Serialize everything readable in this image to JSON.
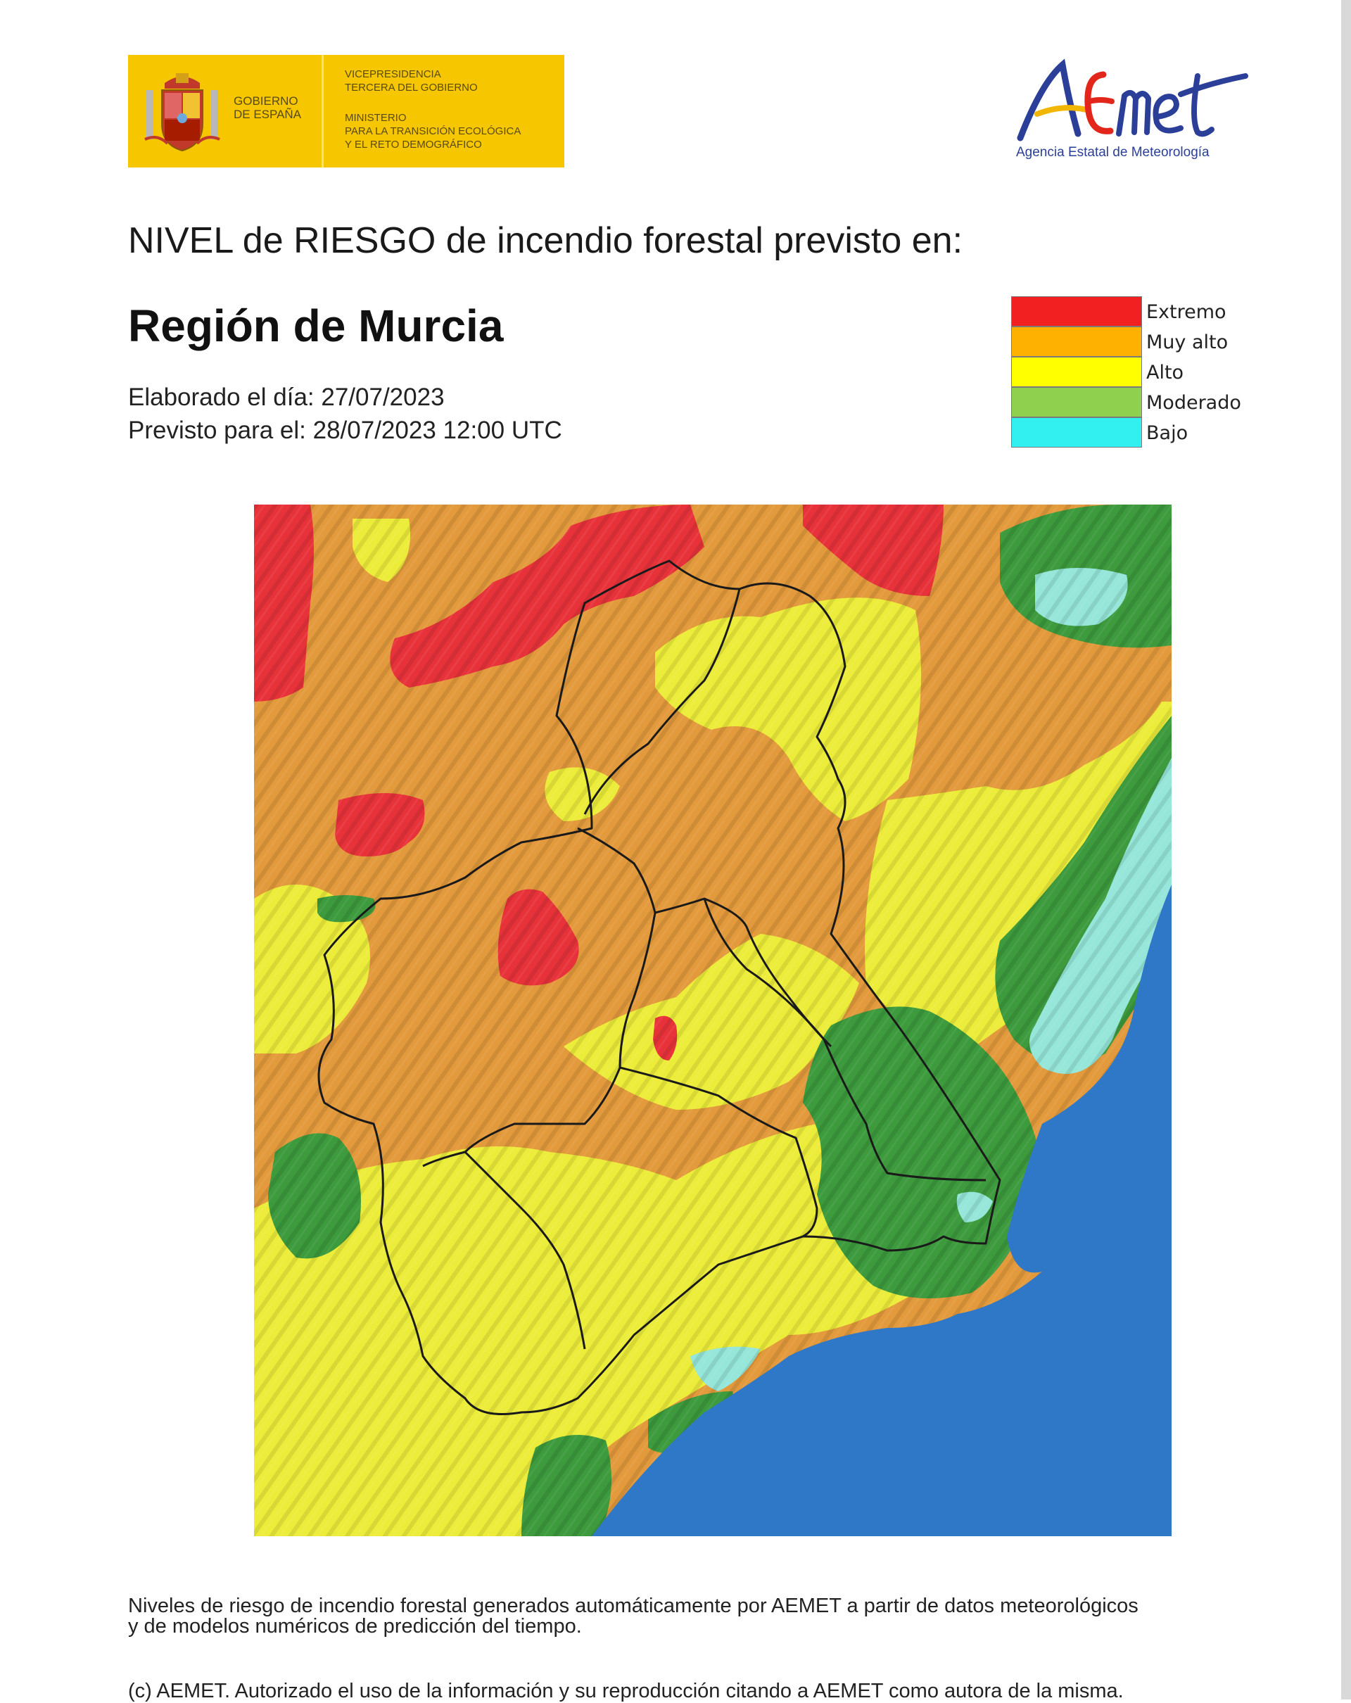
{
  "gov_logo": {
    "name": [
      "GOBIERNO",
      "DE ESPAÑA"
    ],
    "vice": [
      "VICEPRESIDENCIA",
      "TERCERA DEL GOBIERNO"
    ],
    "ministry": [
      "MINISTERIO",
      "PARA LA TRANSICIÓN ECOLÓGICA",
      "Y EL RETO DEMOGRÁFICO"
    ],
    "color": "#f6c700"
  },
  "aemet_logo": {
    "wordmark": "AEMet",
    "subtitle": "Agencia Estatal de Meteorología",
    "colors": {
      "blue": "#2b3f99",
      "yellow": "#f2b500",
      "red": "#e3261b"
    }
  },
  "header": {
    "line": "NIVEL de RIESGO de incendio forestal previsto en:",
    "region": "Región de Murcia",
    "elaborated": "Elaborado el día: 27/07/2023",
    "forecast": "Previsto para el: 28/07/2023 12:00 UTC"
  },
  "legend": [
    {
      "label": "Extremo",
      "color": "#f22020"
    },
    {
      "label": "Muy alto",
      "color": "#ffb100"
    },
    {
      "label": "Alto",
      "color": "#ffff00"
    },
    {
      "label": "Moderado",
      "color": "#8fd04f"
    },
    {
      "label": "Bajo",
      "color": "#33f0f0"
    }
  ],
  "map": {
    "colors": {
      "extremo": "#e8323a",
      "muy_alto": "#e39a3c",
      "alto": "#ecec3a",
      "moderado": "#3d9a3d",
      "bajo": "#96e6d9",
      "sea": "#2f78c8",
      "border": "#1a1a1a"
    }
  },
  "footer": {
    "note": [
      "Niveles de riesgo de incendio forestal generados automáticamente por AEMET a partir de datos meteorológicos",
      "y de modelos numéricos de predicción del tiempo."
    ],
    "copyright": "(c) AEMET. Autorizado el uso de la información y su reproducción citando a AEMET como autora de la misma."
  }
}
